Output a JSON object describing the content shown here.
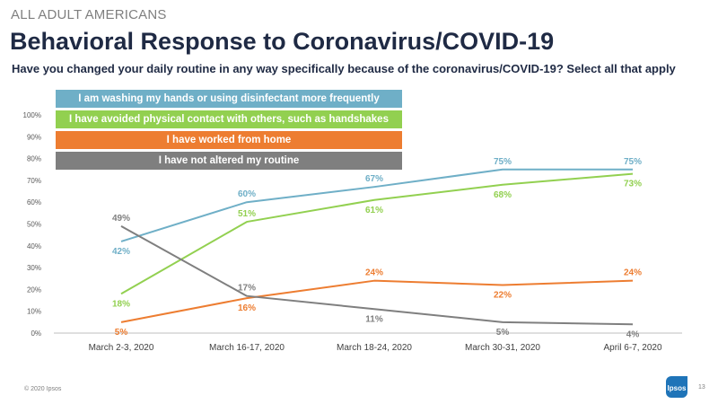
{
  "header": {
    "eyebrow": "ALL ADULT AMERICANS",
    "title": "Behavioral Response to Coronavirus/COVID-19",
    "question": "Have you changed your daily routine in any way specifically because of the coronavirus/COVID-19? Select all that apply"
  },
  "footer": {
    "copyright": "© 2020 Ipsos",
    "page_number": "13",
    "logo_text": "Ipsos"
  },
  "colors": {
    "blue": "#6fafc7",
    "green": "#92d050",
    "orange": "#ed7d31",
    "gray": "#7f7f7f",
    "axis": "#bfbfbf",
    "tick_text": "#595959"
  },
  "chart_data": {
    "type": "line",
    "categories": [
      "March 2-3, 2020",
      "March 16-17, 2020",
      "March 18-24, 2020",
      "March 30-31, 2020",
      "April 6-7, 2020"
    ],
    "ylim": [
      0,
      100
    ],
    "yticks": [
      0,
      10,
      20,
      30,
      40,
      50,
      60,
      70,
      80,
      90,
      100
    ],
    "ytick_labels": [
      "0%",
      "10%",
      "20%",
      "30%",
      "40%",
      "50%",
      "60%",
      "70%",
      "80%",
      "90%",
      "100%"
    ],
    "grid": false,
    "legend_position": "top-left",
    "series": [
      {
        "name": "I am washing my hands or using disinfectant more frequently",
        "color": "#6fafc7",
        "values": [
          42,
          60,
          67,
          75,
          75
        ],
        "labels": [
          "42%",
          "60%",
          "67%",
          "75%",
          "75%"
        ],
        "label_side": [
          "below",
          "above",
          "above",
          "above",
          "above"
        ]
      },
      {
        "name": "I have avoided physical contact with others, such as handshakes",
        "color": "#92d050",
        "values": [
          18,
          51,
          61,
          68,
          73
        ],
        "labels": [
          "18%",
          "51%",
          "61%",
          "68%",
          "73%"
        ],
        "label_side": [
          "below",
          "above",
          "below",
          "below",
          "below"
        ]
      },
      {
        "name": "I have worked from home",
        "color": "#ed7d31",
        "values": [
          5,
          16,
          24,
          22,
          24
        ],
        "labels": [
          "5%",
          "16%",
          "24%",
          "22%",
          "24%"
        ],
        "label_side": [
          "below",
          "below",
          "above",
          "below",
          "above"
        ]
      },
      {
        "name": "I have not altered my routine",
        "color": "#7f7f7f",
        "values": [
          49,
          17,
          11,
          5,
          4
        ],
        "labels": [
          "49%",
          "17%",
          "11%",
          "5%",
          "4%"
        ],
        "label_side": [
          "above",
          "above",
          "below",
          "below",
          "below"
        ]
      }
    ]
  }
}
